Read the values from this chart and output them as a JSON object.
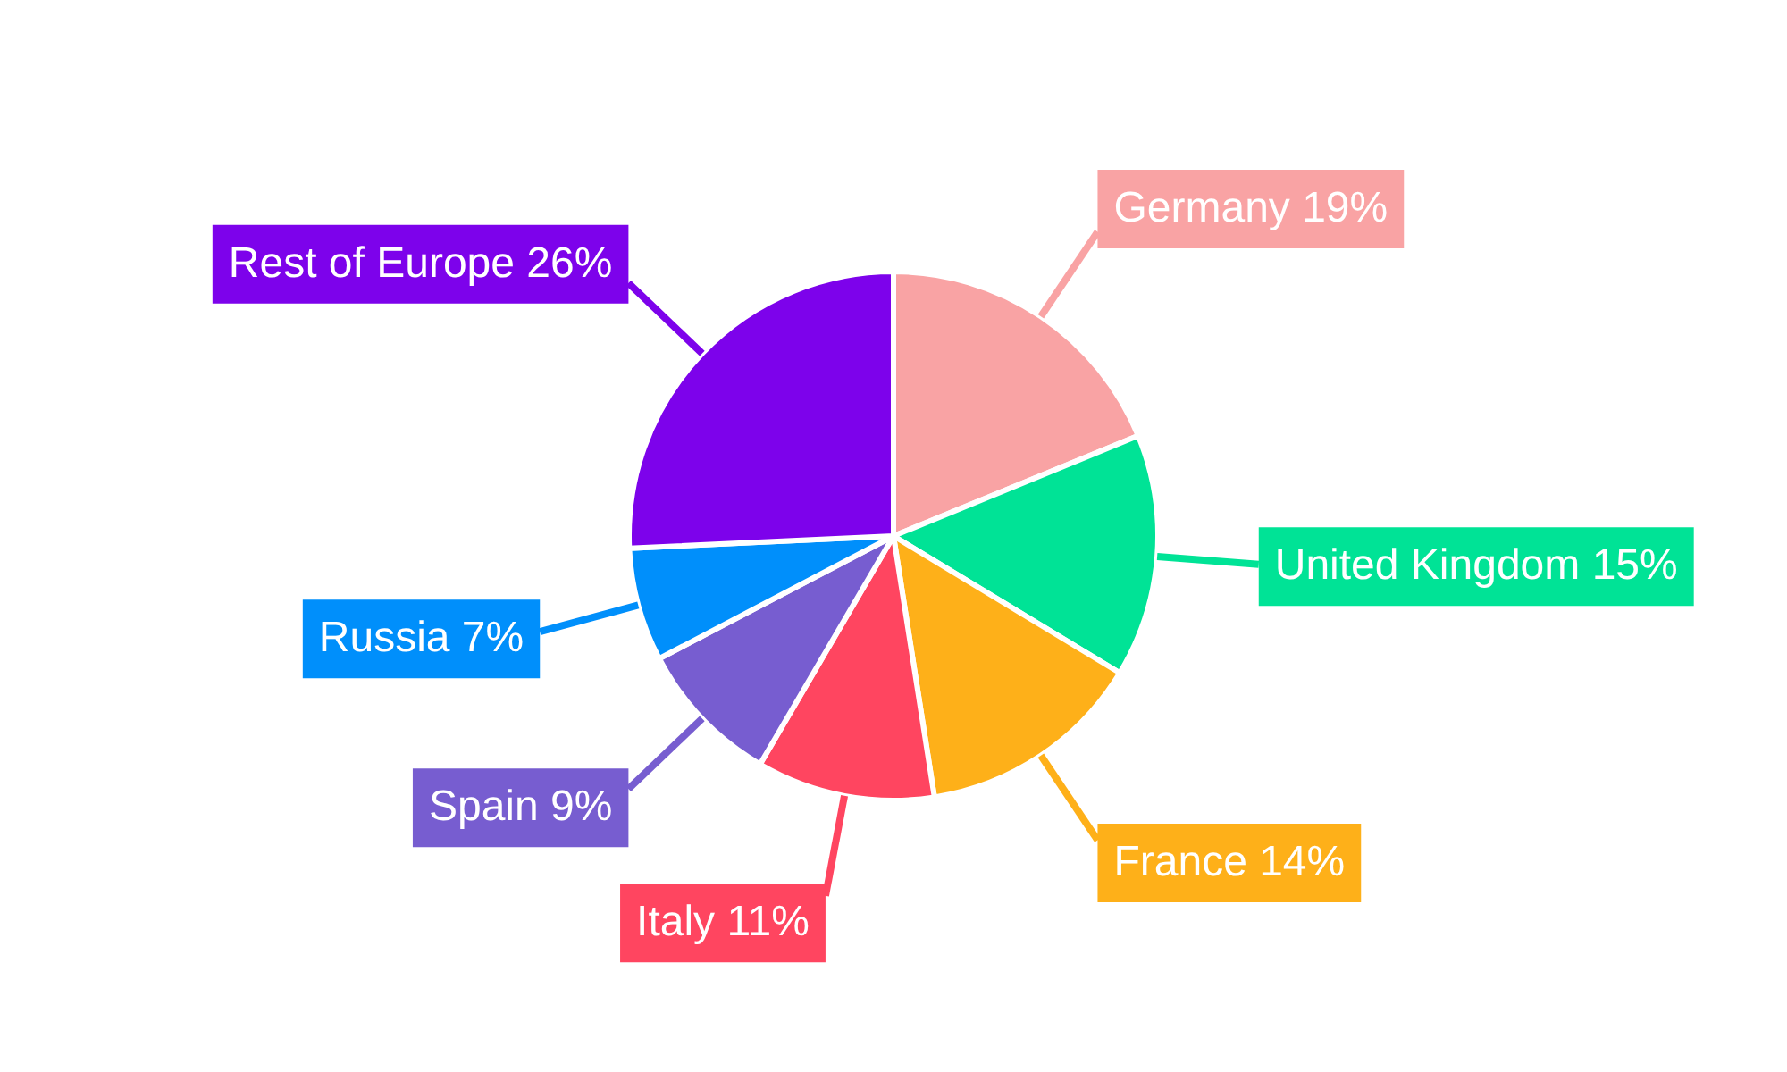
{
  "chart_data": {
    "type": "pie",
    "categories": [
      "Germany",
      "United Kingdom",
      "France",
      "Italy",
      "Spain",
      "Russia",
      "Rest of Europe"
    ],
    "values": [
      19,
      15,
      14,
      11,
      9,
      7,
      26
    ],
    "value_labels": [
      "19%",
      "15%",
      "14%",
      "11%",
      "9%",
      "7%",
      "26%"
    ],
    "colors": [
      "#f9a3a4",
      "#00e396",
      "#feb019",
      "#ff4560",
      "#775dd0",
      "#008ffb",
      "#7d02eb"
    ]
  }
}
